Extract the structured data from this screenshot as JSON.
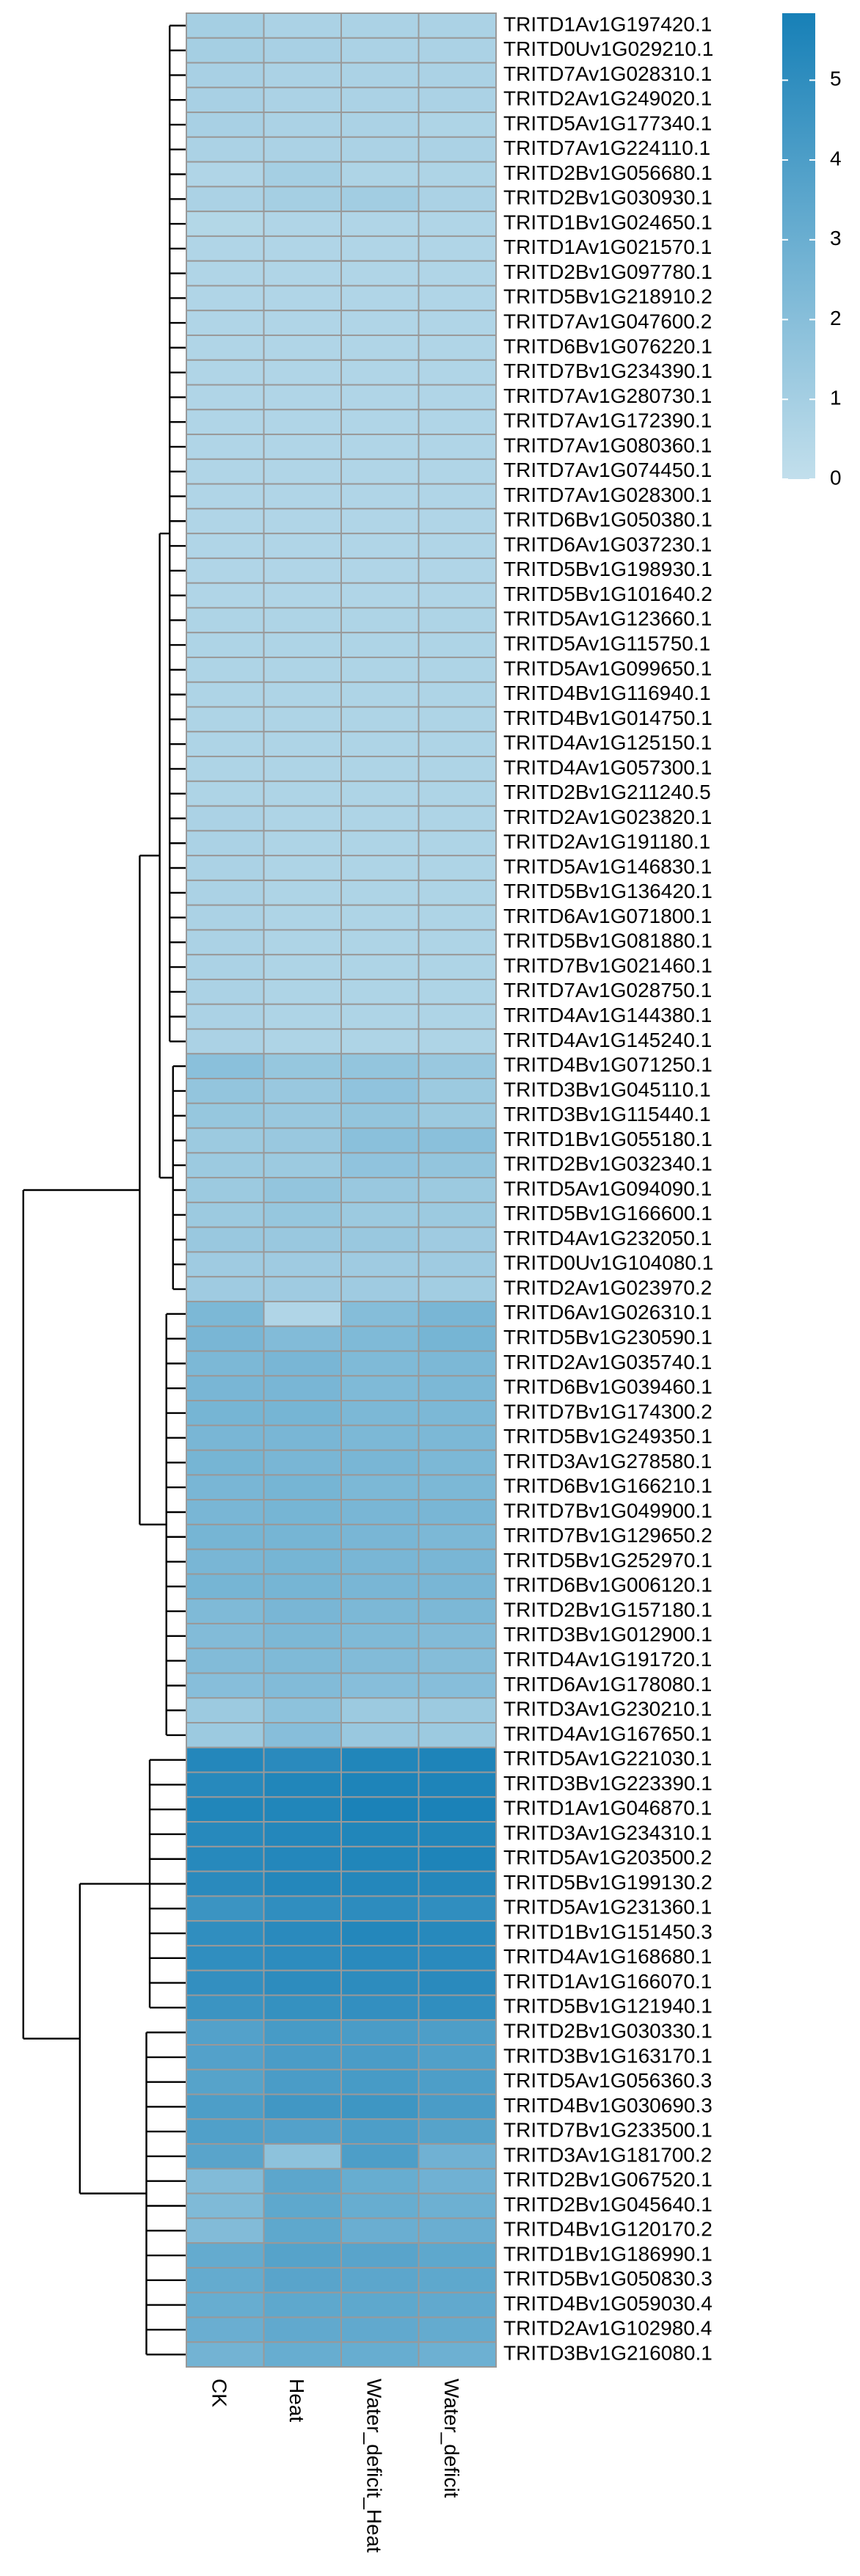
{
  "chart_data": {
    "type": "heatmap",
    "rows": [
      "TRITD1Av1G197420.1",
      "TRITD0Uv1G029210.1",
      "TRITD7Av1G028310.1",
      "TRITD2Av1G249020.1",
      "TRITD5Av1G177340.1",
      "TRITD7Av1G224110.1",
      "TRITD2Bv1G056680.1",
      "TRITD2Bv1G030930.1",
      "TRITD1Bv1G024650.1",
      "TRITD1Av1G021570.1",
      "TRITD2Bv1G097780.1",
      "TRITD5Bv1G218910.2",
      "TRITD7Av1G047600.2",
      "TRITD6Bv1G076220.1",
      "TRITD7Bv1G234390.1",
      "TRITD7Av1G280730.1",
      "TRITD7Av1G172390.1",
      "TRITD7Av1G080360.1",
      "TRITD7Av1G074450.1",
      "TRITD7Av1G028300.1",
      "TRITD6Bv1G050380.1",
      "TRITD6Av1G037230.1",
      "TRITD5Bv1G198930.1",
      "TRITD5Bv1G101640.2",
      "TRITD5Av1G123660.1",
      "TRITD5Av1G115750.1",
      "TRITD5Av1G099650.1",
      "TRITD4Bv1G116940.1",
      "TRITD4Bv1G014750.1",
      "TRITD4Av1G125150.1",
      "TRITD4Av1G057300.1",
      "TRITD2Bv1G211240.5",
      "TRITD2Av1G023820.1",
      "TRITD2Av1G191180.1",
      "TRITD5Av1G146830.1",
      "TRITD5Bv1G136420.1",
      "TRITD6Av1G071800.1",
      "TRITD5Bv1G081880.1",
      "TRITD7Bv1G021460.1",
      "TRITD7Av1G028750.1",
      "TRITD4Av1G144380.1",
      "TRITD4Av1G145240.1",
      "TRITD4Bv1G071250.1",
      "TRITD3Bv1G045110.1",
      "TRITD3Bv1G115440.1",
      "TRITD1Bv1G055180.1",
      "TRITD2Bv1G032340.1",
      "TRITD5Av1G094090.1",
      "TRITD5Bv1G166600.1",
      "TRITD4Av1G232050.1",
      "TRITD0Uv1G104080.1",
      "TRITD2Av1G023970.2",
      "TRITD6Av1G026310.1",
      "TRITD5Bv1G230590.1",
      "TRITD2Av1G035740.1",
      "TRITD6Bv1G039460.1",
      "TRITD7Bv1G174300.2",
      "TRITD5Bv1G249350.1",
      "TRITD3Av1G278580.1",
      "TRITD6Bv1G166210.1",
      "TRITD7Bv1G049900.1",
      "TRITD7Bv1G129650.2",
      "TRITD5Bv1G252970.1",
      "TRITD6Bv1G006120.1",
      "TRITD2Bv1G157180.1",
      "TRITD3Bv1G012900.1",
      "TRITD4Av1G191720.1",
      "TRITD6Av1G178080.1",
      "TRITD3Av1G230210.1",
      "TRITD4Av1G167650.1",
      "TRITD5Av1G221030.1",
      "TRITD3Bv1G223390.1",
      "TRITD1Av1G046870.1",
      "TRITD3Av1G234310.1",
      "TRITD5Av1G203500.2",
      "TRITD5Bv1G199130.2",
      "TRITD5Av1G231360.1",
      "TRITD1Bv1G151450.3",
      "TRITD4Av1G168680.1",
      "TRITD1Av1G166070.1",
      "TRITD5Bv1G121940.1",
      "TRITD2Bv1G030330.1",
      "TRITD3Bv1G163170.1",
      "TRITD5Av1G056360.3",
      "TRITD4Bv1G030690.3",
      "TRITD7Bv1G233500.1",
      "TRITD3Av1G181700.2",
      "TRITD2Bv1G067520.1",
      "TRITD2Bv1G045640.1",
      "TRITD4Bv1G120170.2",
      "TRITD1Bv1G186990.1",
      "TRITD5Bv1G050830.3",
      "TRITD4Bv1G059030.4",
      "TRITD2Av1G102980.4",
      "TRITD3Bv1G216080.1"
    ],
    "columns": [
      "CK",
      "Heat",
      "Water_deficit_Heat",
      "Water_deficit"
    ],
    "values": [
      [
        1.0,
        0.8,
        0.8,
        0.8
      ],
      [
        1.0,
        0.9,
        0.8,
        0.8
      ],
      [
        0.9,
        0.8,
        0.8,
        0.8
      ],
      [
        0.9,
        0.8,
        0.8,
        0.8
      ],
      [
        0.9,
        0.8,
        0.8,
        0.7
      ],
      [
        0.8,
        0.8,
        0.8,
        0.8
      ],
      [
        0.6,
        1.0,
        0.7,
        0.7
      ],
      [
        0.8,
        1.0,
        1.1,
        0.8
      ],
      [
        0.5,
        0.6,
        0.6,
        0.6
      ],
      [
        0.6,
        0.6,
        0.6,
        0.6
      ],
      [
        0.6,
        0.6,
        0.6,
        0.6
      ],
      [
        0.6,
        0.6,
        0.6,
        0.6
      ],
      [
        0.6,
        0.6,
        0.6,
        0.6
      ],
      [
        0.6,
        0.6,
        0.6,
        0.6
      ],
      [
        0.6,
        0.6,
        0.6,
        0.6
      ],
      [
        0.6,
        0.6,
        0.6,
        0.6
      ],
      [
        0.6,
        0.6,
        0.6,
        0.6
      ],
      [
        0.6,
        0.6,
        0.6,
        0.6
      ],
      [
        0.6,
        0.6,
        0.6,
        0.6
      ],
      [
        0.6,
        0.6,
        0.6,
        0.6
      ],
      [
        0.6,
        0.6,
        0.6,
        0.6
      ],
      [
        0.6,
        0.6,
        0.6,
        0.6
      ],
      [
        0.6,
        0.6,
        0.6,
        0.6
      ],
      [
        0.6,
        0.6,
        0.6,
        0.6
      ],
      [
        0.7,
        0.7,
        0.7,
        0.7
      ],
      [
        0.7,
        0.7,
        0.7,
        0.7
      ],
      [
        0.7,
        0.7,
        0.7,
        0.7
      ],
      [
        0.7,
        0.7,
        0.7,
        0.7
      ],
      [
        0.7,
        0.7,
        0.7,
        0.7
      ],
      [
        0.7,
        0.7,
        0.7,
        0.7
      ],
      [
        0.7,
        0.7,
        0.7,
        0.7
      ],
      [
        0.7,
        0.7,
        0.7,
        0.7
      ],
      [
        0.8,
        0.7,
        0.7,
        0.7
      ],
      [
        0.8,
        0.7,
        0.7,
        0.7
      ],
      [
        0.8,
        0.7,
        0.7,
        0.7
      ],
      [
        0.8,
        0.7,
        0.7,
        0.7
      ],
      [
        0.8,
        0.7,
        0.7,
        0.7
      ],
      [
        0.8,
        0.7,
        0.7,
        0.7
      ],
      [
        0.8,
        0.7,
        0.7,
        0.7
      ],
      [
        0.8,
        0.7,
        0.7,
        0.7
      ],
      [
        0.8,
        0.7,
        0.7,
        0.7
      ],
      [
        0.8,
        0.7,
        0.7,
        0.7
      ],
      [
        1.9,
        1.5,
        1.6,
        1.4
      ],
      [
        1.6,
        1.4,
        1.7,
        1.3
      ],
      [
        1.5,
        1.4,
        1.6,
        1.3
      ],
      [
        1.3,
        1.4,
        1.9,
        1.9
      ],
      [
        1.3,
        1.3,
        1.7,
        1.6
      ],
      [
        1.3,
        1.6,
        1.4,
        1.3
      ],
      [
        1.3,
        1.5,
        1.3,
        1.3
      ],
      [
        1.4,
        1.4,
        1.4,
        1.2
      ],
      [
        1.2,
        1.2,
        1.2,
        1.2
      ],
      [
        1.2,
        1.2,
        1.2,
        1.1
      ],
      [
        2.4,
        0.6,
        2.1,
        2.5
      ],
      [
        2.5,
        2.2,
        2.3,
        2.6
      ],
      [
        2.4,
        2.5,
        2.3,
        2.4
      ],
      [
        2.5,
        2.5,
        2.3,
        2.4
      ],
      [
        2.6,
        2.6,
        2.4,
        2.4
      ],
      [
        2.5,
        2.5,
        2.4,
        2.4
      ],
      [
        2.6,
        2.5,
        2.5,
        2.4
      ],
      [
        2.5,
        2.6,
        2.4,
        2.4
      ],
      [
        2.5,
        2.6,
        2.5,
        2.5
      ],
      [
        2.6,
        2.6,
        2.5,
        2.4
      ],
      [
        2.5,
        2.6,
        2.5,
        2.5
      ],
      [
        2.6,
        2.6,
        2.5,
        2.5
      ],
      [
        2.3,
        2.5,
        2.4,
        2.4
      ],
      [
        2.2,
        2.4,
        2.3,
        2.2
      ],
      [
        2.2,
        2.3,
        2.2,
        2.1
      ],
      [
        2.0,
        2.2,
        2.0,
        2.0
      ],
      [
        1.3,
        1.8,
        1.3,
        1.3
      ],
      [
        1.3,
        2.0,
        1.4,
        1.3
      ],
      [
        5.4,
        5.2,
        5.5,
        5.6
      ],
      [
        5.3,
        5.5,
        5.6,
        5.6
      ],
      [
        5.5,
        5.5,
        5.7,
        5.7
      ],
      [
        5.3,
        5.4,
        5.5,
        5.5
      ],
      [
        5.3,
        5.4,
        5.5,
        5.6
      ],
      [
        5.2,
        5.4,
        5.4,
        5.4
      ],
      [
        4.6,
        5.0,
        5.1,
        5.0
      ],
      [
        5.0,
        5.2,
        5.4,
        5.3
      ],
      [
        5.0,
        5.1,
        5.2,
        5.2
      ],
      [
        4.9,
        5.1,
        5.1,
        5.2
      ],
      [
        4.6,
        4.8,
        4.9,
        5.0
      ],
      [
        3.8,
        4.2,
        4.1,
        4.0
      ],
      [
        3.8,
        4.1,
        4.1,
        3.9
      ],
      [
        3.7,
        4.1,
        4.2,
        4.0
      ],
      [
        4.0,
        4.4,
        4.5,
        4.1
      ],
      [
        3.9,
        3.8,
        4.0,
        3.7
      ],
      [
        3.6,
        1.8,
        4.0,
        2.8
      ],
      [
        2.2,
        3.5,
        3.1,
        2.8
      ],
      [
        2.3,
        3.4,
        3.1,
        2.9
      ],
      [
        2.2,
        3.4,
        3.0,
        3.0
      ],
      [
        3.2,
        3.7,
        3.6,
        3.4
      ],
      [
        3.2,
        3.6,
        3.5,
        3.4
      ],
      [
        3.1,
        3.4,
        3.4,
        3.3
      ],
      [
        3.0,
        3.3,
        3.3,
        3.2
      ],
      [
        2.7,
        3.1,
        3.1,
        2.9
      ]
    ],
    "zlim": [
      0,
      5.84
    ],
    "zticks": [
      0,
      1,
      2,
      3,
      4,
      5
    ],
    "colors": [
      "#c2dfec",
      "#1780b7"
    ]
  }
}
